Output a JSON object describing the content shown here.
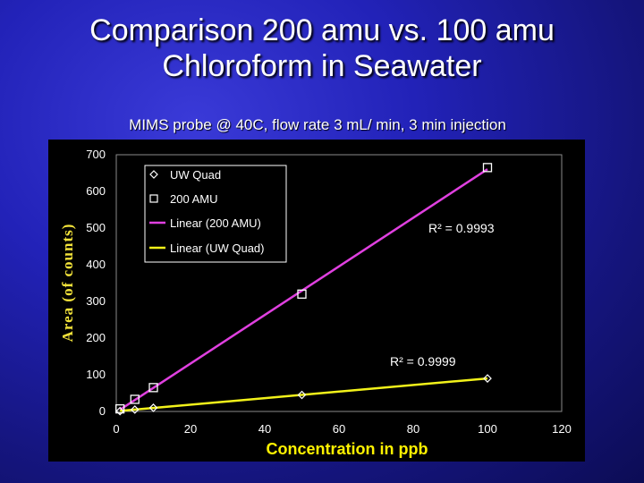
{
  "slide": {
    "title_line1": "Comparison 200 amu vs. 100 amu",
    "title_line2": "Chloroform in Seawater",
    "subtitle": "MIMS probe @ 40C, flow rate 3 mL/ min, 3 min injection"
  },
  "colors": {
    "panel": "#000000",
    "axis_text": "#ffffff",
    "ylabel": "#f2e23a",
    "xlabel": "#fff200",
    "line_200": "#e040e0",
    "line_uw": "#f2f21a"
  },
  "chart_data": {
    "type": "scatter",
    "xlabel": "Concentration in ppb",
    "ylabel": "Area (of counts)",
    "xlim": [
      0,
      120
    ],
    "ylim": [
      0,
      700
    ],
    "xticks": [
      0,
      20,
      40,
      60,
      80,
      100,
      120
    ],
    "yticks": [
      0,
      100,
      200,
      300,
      400,
      500,
      600,
      700
    ],
    "grid": false,
    "legend_position": "top-left",
    "series": [
      {
        "name": "UW Quad",
        "marker": "diamond",
        "x": [
          1,
          5,
          10,
          50,
          100
        ],
        "y": [
          1,
          5,
          10,
          45,
          90
        ]
      },
      {
        "name": "200 AMU",
        "marker": "square",
        "x": [
          1,
          5,
          10,
          50,
          100
        ],
        "y": [
          7,
          33,
          65,
          320,
          665
        ]
      }
    ],
    "trendlines": [
      {
        "name": "Linear (200 AMU)",
        "series": "200 AMU",
        "r2_text": "R² = 0.9993"
      },
      {
        "name": "Linear (UW Quad)",
        "series": "UW Quad",
        "r2_text": "R² = 0.9999"
      }
    ]
  }
}
